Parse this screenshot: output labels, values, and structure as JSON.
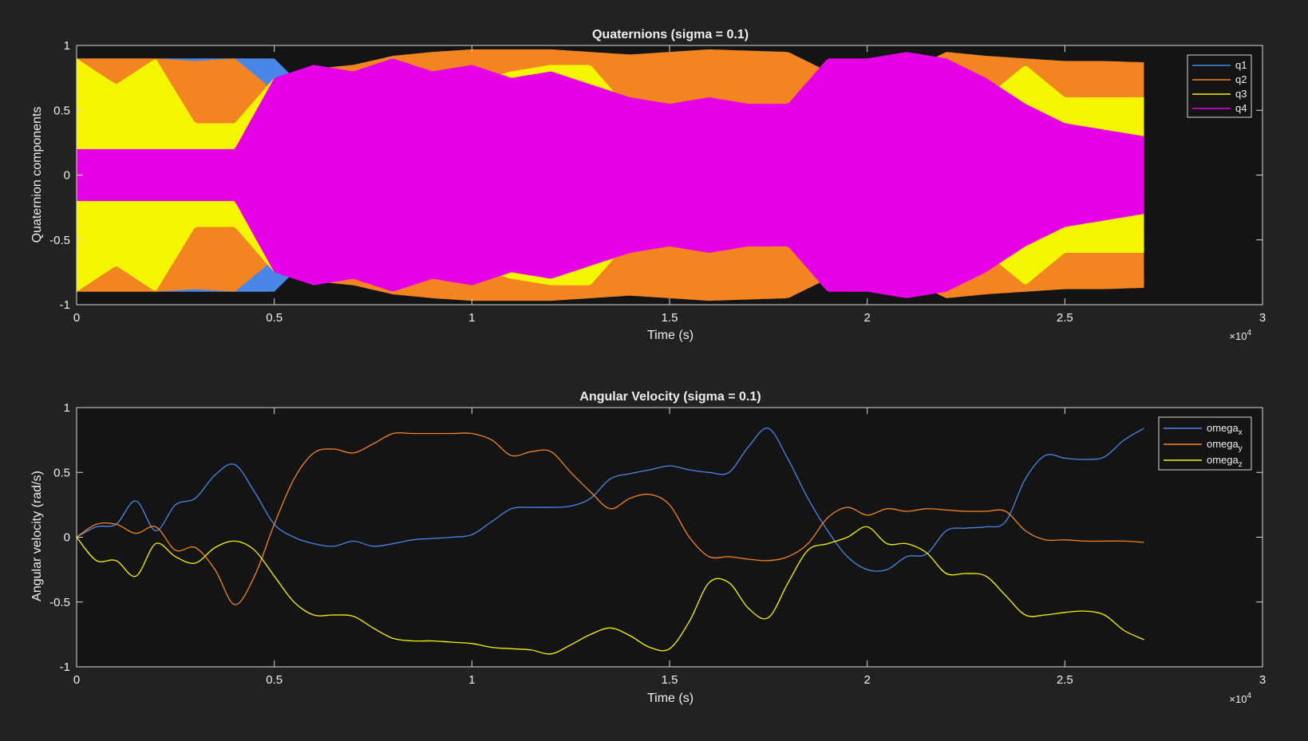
{
  "chart_data": [
    {
      "type": "line",
      "title": "Quaternions (sigma = 0.1)",
      "xlabel": "Time (s)",
      "ylabel": "Quaternion components",
      "xlim": [
        0,
        3
      ],
      "ylim": [
        -1,
        1
      ],
      "x_exponent_label": "×10",
      "x_exponent_power": "4",
      "xticks": [
        "0",
        "0.5",
        "1",
        "1.5",
        "2",
        "2.5",
        "3"
      ],
      "yticks": [
        "-1",
        "-0.5",
        "0",
        "0.5",
        "1"
      ],
      "grid": false,
      "legend_position": "top-right",
      "note": "High-frequency oscillation; each series shown by its amplitude envelope (|value| reached) over time.",
      "x": [
        0,
        0.1,
        0.2,
        0.3,
        0.4,
        0.5,
        0.6,
        0.7,
        0.8,
        0.9,
        1.0,
        1.1,
        1.2,
        1.3,
        1.4,
        1.5,
        1.6,
        1.7,
        1.8,
        1.9,
        2.0,
        2.1,
        2.2,
        2.3,
        2.4,
        2.5,
        2.6,
        2.7
      ],
      "series": [
        {
          "name": "q1",
          "color": "#4a86e8",
          "envelope": [
            0.9,
            0.82,
            0.9,
            0.9,
            0.9,
            0.9,
            0.6,
            0.55,
            0.55,
            0.55,
            0.55,
            0.55,
            0.55,
            0.55,
            0.55,
            0.55,
            0.55,
            0.55,
            0.55,
            0.9,
            0.6,
            0.6,
            0.6,
            0.6,
            0.6,
            0.6,
            0.6,
            0.6
          ]
        },
        {
          "name": "q2",
          "color": "#f28522",
          "envelope": [
            0.9,
            0.9,
            0.9,
            0.88,
            0.9,
            0.65,
            0.82,
            0.85,
            0.92,
            0.95,
            0.97,
            0.97,
            0.97,
            0.95,
            0.93,
            0.95,
            0.97,
            0.96,
            0.95,
            0.8,
            0.75,
            0.8,
            0.95,
            0.92,
            0.9,
            0.88,
            0.88,
            0.87
          ]
        },
        {
          "name": "q3",
          "color": "#f5f500",
          "envelope": [
            0.9,
            0.7,
            0.9,
            0.4,
            0.4,
            0.75,
            0.72,
            0.78,
            0.72,
            0.6,
            0.72,
            0.8,
            0.85,
            0.85,
            0.5,
            0.25,
            0.4,
            0.35,
            0.3,
            0.3,
            0.3,
            0.5,
            0.85,
            0.6,
            0.85,
            0.6,
            0.6,
            0.6
          ]
        },
        {
          "name": "q4",
          "color": "#e600e6",
          "envelope": [
            0.2,
            0.2,
            0.2,
            0.2,
            0.2,
            0.75,
            0.85,
            0.8,
            0.9,
            0.8,
            0.85,
            0.75,
            0.8,
            0.7,
            0.6,
            0.55,
            0.6,
            0.55,
            0.55,
            0.9,
            0.9,
            0.95,
            0.9,
            0.75,
            0.55,
            0.4,
            0.35,
            0.3
          ]
        }
      ]
    },
    {
      "type": "line",
      "title": "Angular Velocity (sigma = 0.1)",
      "xlabel": "Time (s)",
      "ylabel": "Angular velocity (rad/s)",
      "xlim": [
        0,
        3
      ],
      "ylim": [
        -1,
        1
      ],
      "x_exponent_label": "×10",
      "x_exponent_power": "4",
      "xticks": [
        "0",
        "0.5",
        "1",
        "1.5",
        "2",
        "2.5",
        "3"
      ],
      "yticks": [
        "-1",
        "-0.5",
        "0",
        "0.5",
        "1"
      ],
      "grid": false,
      "legend_position": "top-right",
      "series": [
        {
          "name": "omega",
          "sub": "x",
          "color": "#4a86e8",
          "x": [
            0,
            0.05,
            0.1,
            0.15,
            0.2,
            0.25,
            0.3,
            0.35,
            0.4,
            0.45,
            0.5,
            0.55,
            0.6,
            0.65,
            0.7,
            0.75,
            0.8,
            0.85,
            0.9,
            0.95,
            1.0,
            1.05,
            1.1,
            1.15,
            1.2,
            1.25,
            1.3,
            1.35,
            1.4,
            1.45,
            1.5,
            1.55,
            1.6,
            1.65,
            1.7,
            1.75,
            1.8,
            1.85,
            1.9,
            1.95,
            2.0,
            2.05,
            2.1,
            2.15,
            2.2,
            2.25,
            2.3,
            2.35,
            2.4,
            2.45,
            2.5,
            2.55,
            2.6,
            2.65,
            2.7
          ],
          "y": [
            0,
            0.08,
            0.1,
            0.28,
            0.05,
            0.25,
            0.3,
            0.48,
            0.56,
            0.35,
            0.1,
            0.0,
            -0.05,
            -0.07,
            -0.03,
            -0.07,
            -0.05,
            -0.02,
            -0.01,
            0.0,
            0.02,
            0.12,
            0.22,
            0.23,
            0.23,
            0.24,
            0.3,
            0.45,
            0.49,
            0.52,
            0.55,
            0.52,
            0.5,
            0.5,
            0.7,
            0.84,
            0.6,
            0.3,
            0.05,
            -0.15,
            -0.25,
            -0.25,
            -0.15,
            -0.13,
            0.05,
            0.07,
            0.08,
            0.12,
            0.45,
            0.63,
            0.61,
            0.6,
            0.62,
            0.75,
            0.84
          ]
        },
        {
          "name": "omega",
          "sub": "y",
          "color": "#f28522",
          "x": [
            0,
            0.05,
            0.1,
            0.15,
            0.2,
            0.25,
            0.3,
            0.35,
            0.4,
            0.45,
            0.5,
            0.55,
            0.6,
            0.65,
            0.7,
            0.75,
            0.8,
            0.85,
            0.9,
            0.95,
            1.0,
            1.05,
            1.1,
            1.15,
            1.2,
            1.25,
            1.3,
            1.35,
            1.4,
            1.45,
            1.5,
            1.55,
            1.6,
            1.65,
            1.7,
            1.75,
            1.8,
            1.85,
            1.9,
            1.95,
            2.0,
            2.05,
            2.1,
            2.15,
            2.2,
            2.25,
            2.3,
            2.35,
            2.4,
            2.45,
            2.5,
            2.55,
            2.6,
            2.65,
            2.7
          ],
          "y": [
            0,
            0.1,
            0.1,
            0.03,
            0.08,
            -0.1,
            -0.08,
            -0.25,
            -0.52,
            -0.3,
            0.1,
            0.45,
            0.65,
            0.68,
            0.65,
            0.72,
            0.8,
            0.8,
            0.8,
            0.8,
            0.8,
            0.75,
            0.63,
            0.66,
            0.66,
            0.5,
            0.35,
            0.22,
            0.3,
            0.33,
            0.25,
            0.0,
            -0.15,
            -0.15,
            -0.17,
            -0.18,
            -0.15,
            -0.05,
            0.15,
            0.23,
            0.17,
            0.22,
            0.2,
            0.22,
            0.21,
            0.2,
            0.2,
            0.2,
            0.05,
            -0.02,
            -0.02,
            -0.03,
            -0.03,
            -0.03,
            -0.04
          ]
        },
        {
          "name": "omega",
          "sub": "z",
          "color": "#f5f500",
          "x": [
            0,
            0.05,
            0.1,
            0.15,
            0.2,
            0.25,
            0.3,
            0.35,
            0.4,
            0.45,
            0.5,
            0.55,
            0.6,
            0.65,
            0.7,
            0.75,
            0.8,
            0.85,
            0.9,
            0.95,
            1.0,
            1.05,
            1.1,
            1.15,
            1.2,
            1.25,
            1.3,
            1.35,
            1.4,
            1.45,
            1.5,
            1.55,
            1.6,
            1.65,
            1.7,
            1.75,
            1.8,
            1.85,
            1.9,
            1.95,
            2.0,
            2.05,
            2.1,
            2.15,
            2.2,
            2.25,
            2.3,
            2.35,
            2.4,
            2.45,
            2.5,
            2.55,
            2.6,
            2.65,
            2.7
          ],
          "y": [
            0,
            -0.18,
            -0.18,
            -0.3,
            -0.05,
            -0.15,
            -0.2,
            -0.08,
            -0.03,
            -0.1,
            -0.3,
            -0.5,
            -0.6,
            -0.6,
            -0.61,
            -0.7,
            -0.78,
            -0.8,
            -0.8,
            -0.81,
            -0.82,
            -0.85,
            -0.86,
            -0.87,
            -0.9,
            -0.83,
            -0.75,
            -0.7,
            -0.76,
            -0.85,
            -0.86,
            -0.65,
            -0.35,
            -0.35,
            -0.55,
            -0.62,
            -0.35,
            -0.1,
            -0.05,
            0.0,
            0.08,
            -0.05,
            -0.05,
            -0.12,
            -0.28,
            -0.28,
            -0.3,
            -0.45,
            -0.6,
            -0.6,
            -0.58,
            -0.57,
            -0.6,
            -0.72,
            -0.79
          ]
        }
      ]
    }
  ]
}
